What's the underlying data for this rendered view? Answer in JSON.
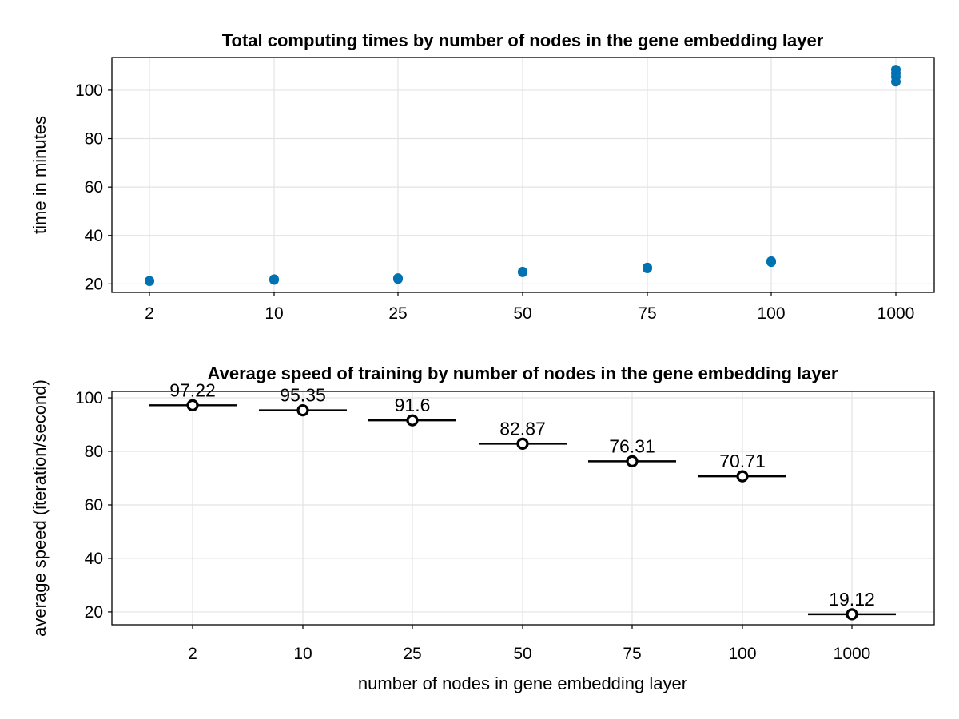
{
  "chart_data": [
    {
      "type": "scatter",
      "title": "Total computing times by number of nodes in the gene embedding layer",
      "xlabel": "",
      "ylabel": "time in minutes",
      "categories": [
        "2",
        "10",
        "25",
        "50",
        "75",
        "100",
        "1000"
      ],
      "yticks": [
        20,
        40,
        60,
        80,
        100
      ],
      "ylim": [
        16.5,
        113.5
      ],
      "grid": true,
      "color": "#0072b2",
      "series": [
        {
          "points": [
            {
              "x": "2",
              "y": 21.1
            },
            {
              "x": "2",
              "y": 21.3
            },
            {
              "x": "10",
              "y": 21.6
            },
            {
              "x": "10",
              "y": 22.0
            },
            {
              "x": "25",
              "y": 22.0
            },
            {
              "x": "25",
              "y": 22.4
            },
            {
              "x": "50",
              "y": 24.8
            },
            {
              "x": "50",
              "y": 25.1
            },
            {
              "x": "75",
              "y": 26.4
            },
            {
              "x": "75",
              "y": 26.8
            },
            {
              "x": "100",
              "y": 29.0
            },
            {
              "x": "100",
              "y": 29.4
            },
            {
              "x": "1000",
              "y": 103.5
            },
            {
              "x": "1000",
              "y": 105.5
            },
            {
              "x": "1000",
              "y": 107.0
            },
            {
              "x": "1000",
              "y": 108.5
            }
          ]
        }
      ]
    },
    {
      "type": "box",
      "title": "Average speed of training by number of nodes in the gene embedding layer",
      "xlabel": "number of nodes in gene embedding layer",
      "ylabel": "average speed (iteration/second)",
      "categories": [
        "2",
        "10",
        "25",
        "50",
        "75",
        "100",
        "1000"
      ],
      "yticks": [
        20,
        40,
        60,
        80,
        100
      ],
      "ylim": [
        15.2,
        102.4
      ],
      "grid": true,
      "values": [
        97.22,
        95.35,
        91.6,
        82.87,
        76.31,
        70.71,
        19.12
      ],
      "labels": [
        "97.22",
        "95.35",
        "91.6",
        "82.87",
        "76.31",
        "70.71",
        "19.12"
      ]
    }
  ]
}
